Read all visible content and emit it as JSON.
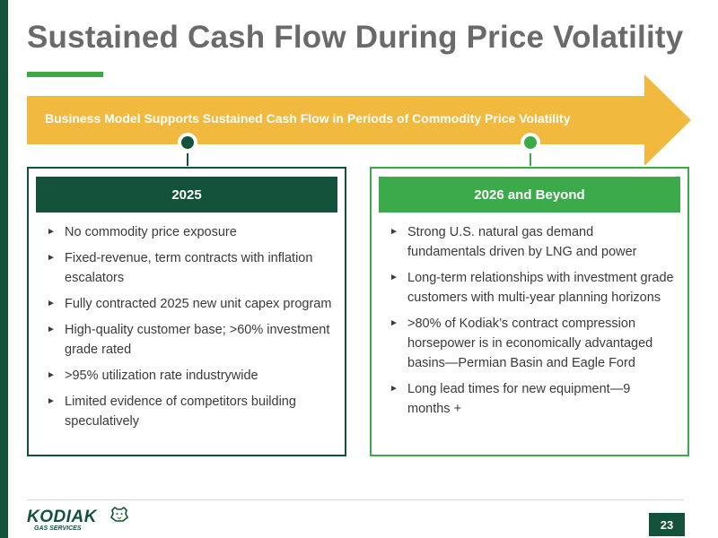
{
  "slide": {
    "title": "Sustained Cash Flow During Price Volatility",
    "banner": "Business Model Supports Sustained Cash Flow in Periods of Commodity Price Volatility",
    "page_number": "23"
  },
  "colors": {
    "dark_green": "#14513a",
    "light_green": "#3caa4a",
    "banner_gold": "#f1b93e",
    "title_gray": "#6a6a6a"
  },
  "panels": [
    {
      "header": "2025",
      "bullets": [
        "No commodity price exposure",
        "Fixed-revenue, term contracts with inflation escalators",
        "Fully contracted 2025 new unit capex program",
        "High-quality customer base; >60% investment grade rated",
        ">95% utilization rate industrywide",
        "Limited evidence of competitors building speculatively"
      ]
    },
    {
      "header": "2026 and Beyond",
      "bullets": [
        "Strong U.S. natural gas demand fundamentals driven by LNG and power",
        "Long-term relationships with investment grade customers with multi-year planning horizons",
        ">80% of Kodiak’s contract compression horsepower is in economically advantaged basins—Permian Basin and Eagle Ford",
        "Long lead times for new equipment—9 months +"
      ]
    }
  ],
  "logo": {
    "name": "KODIAK",
    "subtitle": "GAS SERVICES",
    "icon": "bear-head-icon"
  },
  "icons": {
    "bullet": "right-triangle-bullet-icon",
    "banner_arrow": "arrow-right-icon"
  }
}
